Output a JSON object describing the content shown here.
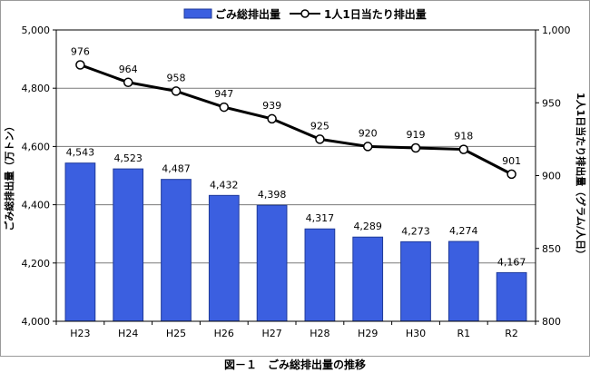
{
  "chart_data": {
    "type": "bar+line",
    "categories": [
      "H23",
      "H24",
      "H25",
      "H26",
      "H27",
      "H28",
      "H29",
      "H30",
      "R1",
      "R2"
    ],
    "series": [
      {
        "name": "ごみ総排出量",
        "type": "bar",
        "axis": "left",
        "values": [
          4543,
          4523,
          4487,
          4432,
          4398,
          4317,
          4289,
          4273,
          4274,
          4167
        ],
        "labels": [
          "4,543",
          "4,523",
          "4,487",
          "4,432",
          "4,398",
          "4,317",
          "4,289",
          "4,273",
          "4,274",
          "4,167"
        ],
        "color": "#3b5fe0"
      },
      {
        "name": "1人1日当たり排出量",
        "type": "line",
        "axis": "right",
        "values": [
          976,
          964,
          958,
          947,
          939,
          925,
          920,
          919,
          918,
          901
        ],
        "labels": [
          "976",
          "964",
          "958",
          "947",
          "939",
          "925",
          "920",
          "919",
          "918",
          "901"
        ],
        "color": "#000000"
      }
    ],
    "ylabel": "ごみ総排出量（万トン）",
    "y2label": "1人1日当たり排出量（グラム/人日）",
    "ylim": [
      4000,
      5000
    ],
    "y2lim": [
      800,
      1000
    ],
    "yticks": [
      "4,000",
      "4,200",
      "4,400",
      "4,600",
      "4,800",
      "5,000"
    ],
    "y2ticks": [
      "800",
      "850",
      "900",
      "950",
      "1,000"
    ],
    "grid": true,
    "legend_position": "top-center"
  },
  "caption": "図－１　ごみ総排出量の推移"
}
